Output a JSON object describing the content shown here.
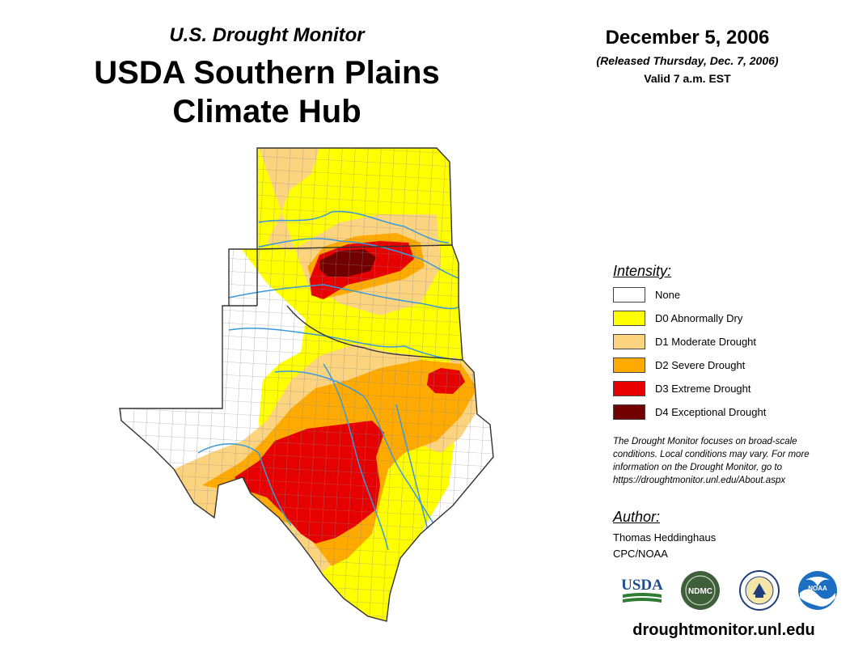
{
  "header": {
    "subtitle": "U.S. Drought Monitor",
    "title_line1": "USDA Southern Plains",
    "title_line2": "Climate Hub"
  },
  "date_block": {
    "date": "December 5, 2006",
    "released": "(Released Thursday, Dec. 7, 2006)",
    "valid": "Valid 7 a.m. EST"
  },
  "legend": {
    "title": "Intensity:",
    "items": [
      {
        "label": "None",
        "color": "#ffffff"
      },
      {
        "label": "D0 Abnormally Dry",
        "color": "#ffff00"
      },
      {
        "label": "D1 Moderate Drought",
        "color": "#fcd37f"
      },
      {
        "label": "D2 Severe Drought",
        "color": "#ffaa00"
      },
      {
        "label": "D3 Extreme Drought",
        "color": "#e60000"
      },
      {
        "label": "D4 Exceptional Drought",
        "color": "#730000"
      }
    ]
  },
  "note": "The Drought Monitor focuses on broad-scale conditions. Local conditions may vary. For more information on the Drought Monitor, go to https://droughtmonitor.unl.edu/About.aspx",
  "author": {
    "title": "Author:",
    "name": "Thomas Heddinghaus",
    "org": "CPC/NOAA"
  },
  "logos": {
    "usda": "USDA",
    "ndmc": "NDMC",
    "noaa": "NOAA"
  },
  "url": "droughtmonitor.unl.edu",
  "map": {
    "states": [
      "Kansas",
      "Oklahoma",
      "Texas"
    ],
    "colors": {
      "none": "#ffffff",
      "d0": "#ffff00",
      "d1": "#fcd37f",
      "d2": "#ffaa00",
      "d3": "#e60000",
      "d4": "#730000",
      "rivers": "#3a9ad9",
      "borders": "#555555"
    }
  }
}
